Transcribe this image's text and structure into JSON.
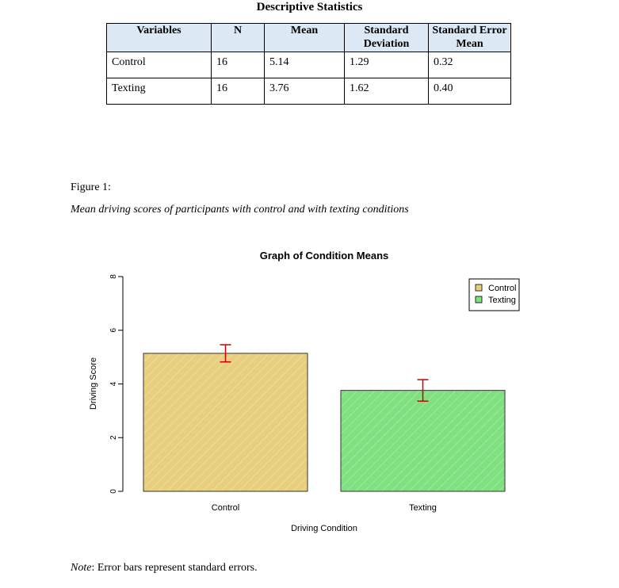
{
  "table": {
    "title": "Descriptive Statistics",
    "headers": [
      "Variables",
      "N",
      "Mean",
      "Standard Deviation",
      "Standard Error Mean"
    ],
    "rows": [
      [
        "Control",
        "16",
        "5.14",
        "1.29",
        "0.32"
      ],
      [
        "Texting",
        "16",
        "3.76",
        "1.62",
        "0.40"
      ]
    ]
  },
  "figure": {
    "label": "Figure 1:",
    "caption": "Mean driving scores of participants with control and with texting conditions"
  },
  "note": {
    "prefix": "Note",
    "text": ": Error bars represent standard errors."
  },
  "colors": {
    "control": "#e8cf7d",
    "texting": "#7fe07f",
    "error_bar": "#cc0000"
  },
  "chart_data": {
    "type": "bar",
    "title": "Graph of Condition Means",
    "xlabel": "Driving Condition",
    "ylabel": "Driving Score",
    "categories": [
      "Control",
      "Texting"
    ],
    "values": [
      5.14,
      3.76
    ],
    "errors": [
      0.32,
      0.4
    ],
    "ylim": [
      0,
      8
    ],
    "yticks": [
      "0",
      "2",
      "4",
      "6",
      "8"
    ],
    "legend": [
      "Control",
      "Texting"
    ],
    "legend_position": "top-right",
    "grid": false
  }
}
